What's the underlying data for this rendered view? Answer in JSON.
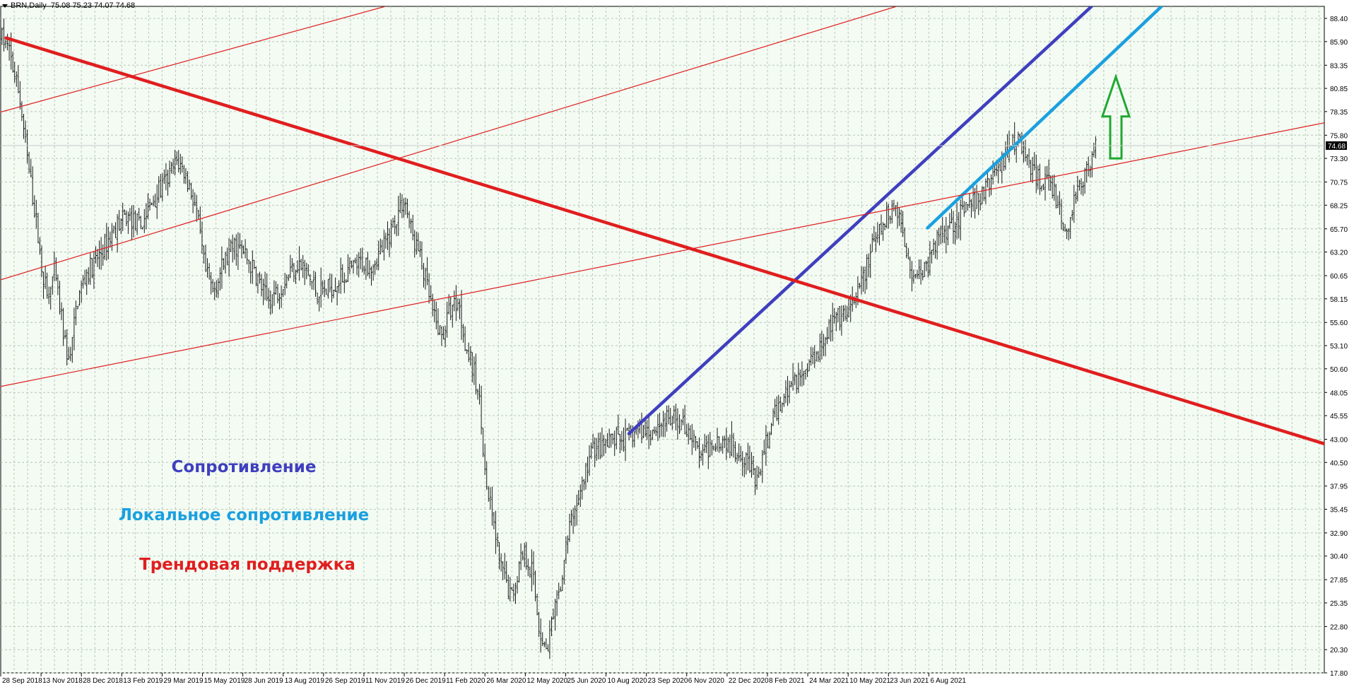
{
  "header": {
    "symbol": "BRN,Daily",
    "ohlc": "75.08 75.23 74.07 74.68"
  },
  "annotations": [
    {
      "text": "Сопротивление",
      "color": "#3f3fbf"
    },
    {
      "text": "Локальное сопротивление",
      "color": "#1aa0e0"
    },
    {
      "text": "Трендовая поддержка",
      "color": "#e01e1e"
    }
  ],
  "colors": {
    "background": "#f3fbf3",
    "grid": "#b8c8b8",
    "bars": "#1a1a1a",
    "resistance": "#3f3fbf",
    "local_resistance": "#1aa0e0",
    "trend": "#e01e1e",
    "arrow": "#1fa830",
    "price_label_bg": "#000000",
    "price_label_text": "#ffffff"
  },
  "chart_data": {
    "type": "candlestick",
    "symbol": "BRN",
    "timeframe": "Daily",
    "current_price": "74.68",
    "ylim": [
      17.8,
      89.7
    ],
    "y_ticks": [
      "88.40",
      "85.90",
      "83.35",
      "80.85",
      "78.35",
      "75.80",
      "73.30",
      "70.75",
      "68.25",
      "65.70",
      "63.20",
      "60.65",
      "58.15",
      "55.60",
      "53.10",
      "50.60",
      "48.05",
      "45.55",
      "43.00",
      "40.50",
      "37.95",
      "35.45",
      "32.90",
      "30.40",
      "27.85",
      "25.35",
      "22.80",
      "20.30",
      "17.80"
    ],
    "x_ticks": [
      "28 Sep 2018",
      "13 Nov 2018",
      "28 Dec 2018",
      "13 Feb 2019",
      "29 Mar 2019",
      "15 May 2019",
      "28 Jun 2019",
      "13 Aug 2019",
      "26 Sep 2019",
      "11 Nov 2019",
      "26 Dec 2019",
      "11 Feb 2020",
      "26 Mar 2020",
      "12 May 2020",
      "25 Jun 2020",
      "10 Aug 2020",
      "23 Sep 2020",
      "6 Nov 2020",
      "22 Dec 2020",
      "8 Feb 2021",
      "24 Mar 2021",
      "10 May 2021",
      "23 Jun 2021",
      "6 Aug 2021"
    ],
    "x_tick_index": [
      0,
      1.5,
      3,
      4.5,
      6,
      7.5,
      9,
      10.5,
      12,
      13.5,
      15,
      16.5,
      18,
      19.5,
      21,
      22.5,
      24,
      25.5,
      27,
      28.5,
      30,
      31.5,
      33,
      34.5
    ],
    "x_end": 49.2,
    "price_path": [
      [
        0.05,
        86.3
      ],
      [
        0.3,
        85
      ],
      [
        0.7,
        80
      ],
      [
        1.0,
        73
      ],
      [
        1.3,
        67
      ],
      [
        1.5,
        62
      ],
      [
        1.75,
        58
      ],
      [
        2.0,
        61
      ],
      [
        2.3,
        55
      ],
      [
        2.55,
        51
      ],
      [
        2.85,
        58
      ],
      [
        3.2,
        61
      ],
      [
        3.5,
        62
      ],
      [
        3.9,
        64
      ],
      [
        4.3,
        66
      ],
      [
        4.7,
        67
      ],
      [
        5.2,
        66
      ],
      [
        5.7,
        69
      ],
      [
        6.2,
        71
      ],
      [
        6.55,
        73
      ],
      [
        6.8,
        72
      ],
      [
        7.05,
        70
      ],
      [
        7.25,
        68
      ],
      [
        7.6,
        61
      ],
      [
        7.9,
        59
      ],
      [
        8.3,
        62
      ],
      [
        8.7,
        64
      ],
      [
        9.05,
        63
      ],
      [
        9.45,
        61
      ],
      [
        9.9,
        58
      ],
      [
        10.3,
        59
      ],
      [
        10.7,
        61
      ],
      [
        11.05,
        62
      ],
      [
        11.35,
        61
      ],
      [
        11.75,
        59
      ],
      [
        12.1,
        59
      ],
      [
        12.5,
        60
      ],
      [
        12.9,
        61
      ],
      [
        13.4,
        62
      ],
      [
        13.8,
        62
      ],
      [
        14.3,
        64
      ],
      [
        14.7,
        67
      ],
      [
        15.0,
        69
      ],
      [
        15.3,
        65
      ],
      [
        15.55,
        63
      ],
      [
        15.8,
        60
      ],
      [
        16.1,
        56
      ],
      [
        16.4,
        54
      ],
      [
        16.7,
        57
      ],
      [
        17.0,
        58
      ],
      [
        17.3,
        53
      ],
      [
        17.6,
        50
      ],
      [
        17.85,
        46
      ],
      [
        18.0,
        39
      ],
      [
        18.3,
        34
      ],
      [
        18.6,
        29
      ],
      [
        19.0,
        26
      ],
      [
        19.4,
        31
      ],
      [
        19.75,
        29
      ],
      [
        20.0,
        23
      ],
      [
        20.25,
        20
      ],
      [
        20.5,
        23
      ],
      [
        20.8,
        27
      ],
      [
        21.1,
        33
      ],
      [
        21.4,
        36
      ],
      [
        21.7,
        39
      ],
      [
        22.0,
        42
      ],
      [
        22.4,
        42
      ],
      [
        22.8,
        43
      ],
      [
        23.2,
        43
      ],
      [
        23.7,
        44
      ],
      [
        24.2,
        44
      ],
      [
        24.65,
        45
      ],
      [
        25.1,
        45
      ],
      [
        25.6,
        44
      ],
      [
        25.85,
        42
      ],
      [
        26.1,
        41
      ],
      [
        26.5,
        43
      ],
      [
        26.9,
        43
      ],
      [
        27.3,
        42
      ],
      [
        27.75,
        41
      ],
      [
        28.1,
        38
      ],
      [
        28.4,
        42
      ],
      [
        28.7,
        45
      ],
      [
        29.0,
        47
      ],
      [
        29.4,
        49
      ],
      [
        29.8,
        50
      ],
      [
        30.2,
        52
      ],
      [
        30.6,
        54
      ],
      [
        31.0,
        56
      ],
      [
        31.4,
        56
      ],
      [
        31.8,
        58
      ],
      [
        32.1,
        61
      ],
      [
        32.45,
        64
      ],
      [
        32.8,
        66
      ],
      [
        33.1,
        68
      ],
      [
        33.35,
        68
      ],
      [
        33.6,
        64
      ],
      [
        33.9,
        61
      ],
      [
        34.2,
        61
      ],
      [
        34.5,
        62
      ],
      [
        34.85,
        65
      ],
      [
        35.2,
        66
      ],
      [
        35.6,
        67
      ],
      [
        36.0,
        68
      ],
      [
        36.4,
        69
      ],
      [
        36.8,
        71
      ],
      [
        37.2,
        73
      ],
      [
        37.6,
        75
      ],
      [
        37.9,
        75
      ],
      [
        38.2,
        73
      ],
      [
        38.5,
        71
      ],
      [
        38.8,
        71
      ],
      [
        39.1,
        70
      ],
      [
        39.4,
        67
      ],
      [
        39.65,
        65
      ],
      [
        39.9,
        69
      ],
      [
        40.2,
        71
      ],
      [
        40.5,
        73
      ],
      [
        40.7,
        74.7
      ]
    ],
    "lines": [
      {
        "name": "Сопротивление",
        "color": "resistance",
        "width": 4.5,
        "points": [
          [
            23.35,
            43.6
          ],
          [
            40.55,
            89.7
          ]
        ]
      },
      {
        "name": "Локальное сопротивление",
        "color": "local_resistance",
        "width": 4.5,
        "points": [
          [
            34.45,
            65.8
          ],
          [
            43.15,
            89.7
          ]
        ]
      },
      {
        "name": "Трендовая поддержка",
        "color": "trend",
        "width": 4.5,
        "points": [
          [
            0.2,
            86.3
          ],
          [
            50.0,
            41.8
          ]
        ]
      },
      {
        "color": "trend",
        "width": 1.2,
        "points": [
          [
            0.0,
            48.7
          ],
          [
            50.0,
            77.6
          ]
        ]
      },
      {
        "color": "trend",
        "width": 1.2,
        "points": [
          [
            0.0,
            60.2
          ],
          [
            33.3,
            89.7
          ]
        ]
      },
      {
        "color": "trend",
        "width": 1.2,
        "points": [
          [
            0.0,
            78.3
          ],
          [
            14.3,
            89.7
          ]
        ]
      }
    ],
    "arrow": {
      "direction": "up",
      "x": 41.45,
      "y_from": 73.3,
      "y_to": 82.1
    }
  }
}
